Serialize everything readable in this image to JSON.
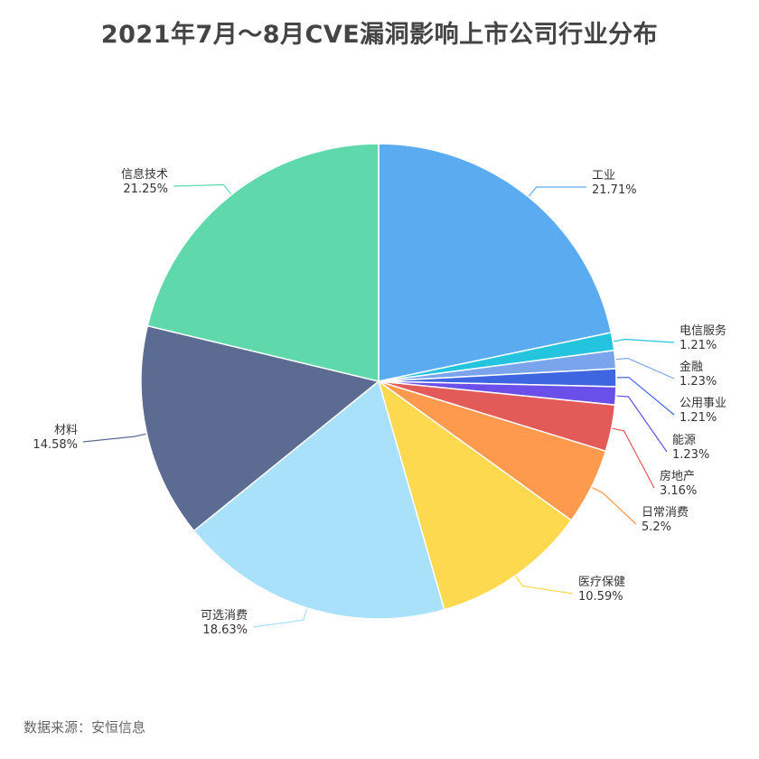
{
  "title": "2021年7月～8月CVE漏洞影响上市公司行业分布",
  "source": "数据来源：安恒信息",
  "chart_data": {
    "type": "pie",
    "title": "2021年7月～8月CVE漏洞影响上市公司行业分布",
    "slices": [
      {
        "label": "工业",
        "value": 21.71,
        "value_label": "21.71%",
        "color": "#5aabf0"
      },
      {
        "label": "电信服务",
        "value": 1.21,
        "value_label": "1.21%",
        "color": "#24c4de"
      },
      {
        "label": "金融",
        "value": 1.23,
        "value_label": "1.23%",
        "color": "#7aa4ec"
      },
      {
        "label": "公用事业",
        "value": 1.21,
        "value_label": "1.21%",
        "color": "#3d66e0"
      },
      {
        "label": "能源",
        "value": 1.23,
        "value_label": "1.23%",
        "color": "#6a4fe8"
      },
      {
        "label": "房地产",
        "value": 3.16,
        "value_label": "3.16%",
        "color": "#e35b59"
      },
      {
        "label": "日常消费",
        "value": 5.2,
        "value_label": "5.2%",
        "color": "#fd9a4d"
      },
      {
        "label": "医疗保健",
        "value": 10.59,
        "value_label": "10.59%",
        "color": "#fcd94e"
      },
      {
        "label": "可选消费",
        "value": 18.63,
        "value_label": "18.63%",
        "color": "#a9e0fa"
      },
      {
        "label": "材料",
        "value": 14.58,
        "value_label": "14.58%",
        "color": "#5b6b91"
      },
      {
        "label": "信息技术",
        "value": 21.25,
        "value_label": "21.25%",
        "color": "#5fd9ab"
      }
    ],
    "legend": "none",
    "label_position": "outside"
  }
}
